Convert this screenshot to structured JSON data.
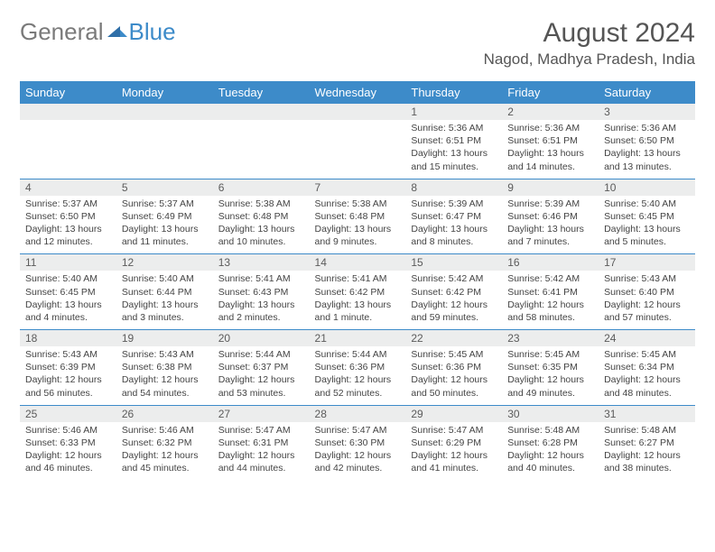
{
  "brand": {
    "part1": "General",
    "part2": "Blue"
  },
  "title": "August 2024",
  "location": "Nagod, Madhya Pradesh, India",
  "colors": {
    "header_bg": "#3d8bc9",
    "daynum_bg": "#eceded",
    "border": "#3d8bc9",
    "text": "#444444",
    "logo_gray": "#7a7a7a",
    "logo_blue": "#3d8bc9"
  },
  "daysOfWeek": [
    "Sunday",
    "Monday",
    "Tuesday",
    "Wednesday",
    "Thursday",
    "Friday",
    "Saturday"
  ],
  "weeks": [
    [
      null,
      null,
      null,
      null,
      {
        "num": "1",
        "sunrise": "5:36 AM",
        "sunset": "6:51 PM",
        "daylight": "13 hours and 15 minutes."
      },
      {
        "num": "2",
        "sunrise": "5:36 AM",
        "sunset": "6:51 PM",
        "daylight": "13 hours and 14 minutes."
      },
      {
        "num": "3",
        "sunrise": "5:36 AM",
        "sunset": "6:50 PM",
        "daylight": "13 hours and 13 minutes."
      }
    ],
    [
      {
        "num": "4",
        "sunrise": "5:37 AM",
        "sunset": "6:50 PM",
        "daylight": "13 hours and 12 minutes."
      },
      {
        "num": "5",
        "sunrise": "5:37 AM",
        "sunset": "6:49 PM",
        "daylight": "13 hours and 11 minutes."
      },
      {
        "num": "6",
        "sunrise": "5:38 AM",
        "sunset": "6:48 PM",
        "daylight": "13 hours and 10 minutes."
      },
      {
        "num": "7",
        "sunrise": "5:38 AM",
        "sunset": "6:48 PM",
        "daylight": "13 hours and 9 minutes."
      },
      {
        "num": "8",
        "sunrise": "5:39 AM",
        "sunset": "6:47 PM",
        "daylight": "13 hours and 8 minutes."
      },
      {
        "num": "9",
        "sunrise": "5:39 AM",
        "sunset": "6:46 PM",
        "daylight": "13 hours and 7 minutes."
      },
      {
        "num": "10",
        "sunrise": "5:40 AM",
        "sunset": "6:45 PM",
        "daylight": "13 hours and 5 minutes."
      }
    ],
    [
      {
        "num": "11",
        "sunrise": "5:40 AM",
        "sunset": "6:45 PM",
        "daylight": "13 hours and 4 minutes."
      },
      {
        "num": "12",
        "sunrise": "5:40 AM",
        "sunset": "6:44 PM",
        "daylight": "13 hours and 3 minutes."
      },
      {
        "num": "13",
        "sunrise": "5:41 AM",
        "sunset": "6:43 PM",
        "daylight": "13 hours and 2 minutes."
      },
      {
        "num": "14",
        "sunrise": "5:41 AM",
        "sunset": "6:42 PM",
        "daylight": "13 hours and 1 minute."
      },
      {
        "num": "15",
        "sunrise": "5:42 AM",
        "sunset": "6:42 PM",
        "daylight": "12 hours and 59 minutes."
      },
      {
        "num": "16",
        "sunrise": "5:42 AM",
        "sunset": "6:41 PM",
        "daylight": "12 hours and 58 minutes."
      },
      {
        "num": "17",
        "sunrise": "5:43 AM",
        "sunset": "6:40 PM",
        "daylight": "12 hours and 57 minutes."
      }
    ],
    [
      {
        "num": "18",
        "sunrise": "5:43 AM",
        "sunset": "6:39 PM",
        "daylight": "12 hours and 56 minutes."
      },
      {
        "num": "19",
        "sunrise": "5:43 AM",
        "sunset": "6:38 PM",
        "daylight": "12 hours and 54 minutes."
      },
      {
        "num": "20",
        "sunrise": "5:44 AM",
        "sunset": "6:37 PM",
        "daylight": "12 hours and 53 minutes."
      },
      {
        "num": "21",
        "sunrise": "5:44 AM",
        "sunset": "6:36 PM",
        "daylight": "12 hours and 52 minutes."
      },
      {
        "num": "22",
        "sunrise": "5:45 AM",
        "sunset": "6:36 PM",
        "daylight": "12 hours and 50 minutes."
      },
      {
        "num": "23",
        "sunrise": "5:45 AM",
        "sunset": "6:35 PM",
        "daylight": "12 hours and 49 minutes."
      },
      {
        "num": "24",
        "sunrise": "5:45 AM",
        "sunset": "6:34 PM",
        "daylight": "12 hours and 48 minutes."
      }
    ],
    [
      {
        "num": "25",
        "sunrise": "5:46 AM",
        "sunset": "6:33 PM",
        "daylight": "12 hours and 46 minutes."
      },
      {
        "num": "26",
        "sunrise": "5:46 AM",
        "sunset": "6:32 PM",
        "daylight": "12 hours and 45 minutes."
      },
      {
        "num": "27",
        "sunrise": "5:47 AM",
        "sunset": "6:31 PM",
        "daylight": "12 hours and 44 minutes."
      },
      {
        "num": "28",
        "sunrise": "5:47 AM",
        "sunset": "6:30 PM",
        "daylight": "12 hours and 42 minutes."
      },
      {
        "num": "29",
        "sunrise": "5:47 AM",
        "sunset": "6:29 PM",
        "daylight": "12 hours and 41 minutes."
      },
      {
        "num": "30",
        "sunrise": "5:48 AM",
        "sunset": "6:28 PM",
        "daylight": "12 hours and 40 minutes."
      },
      {
        "num": "31",
        "sunrise": "5:48 AM",
        "sunset": "6:27 PM",
        "daylight": "12 hours and 38 minutes."
      }
    ]
  ],
  "labels": {
    "sunrise": "Sunrise: ",
    "sunset": "Sunset: ",
    "daylight": "Daylight: "
  }
}
